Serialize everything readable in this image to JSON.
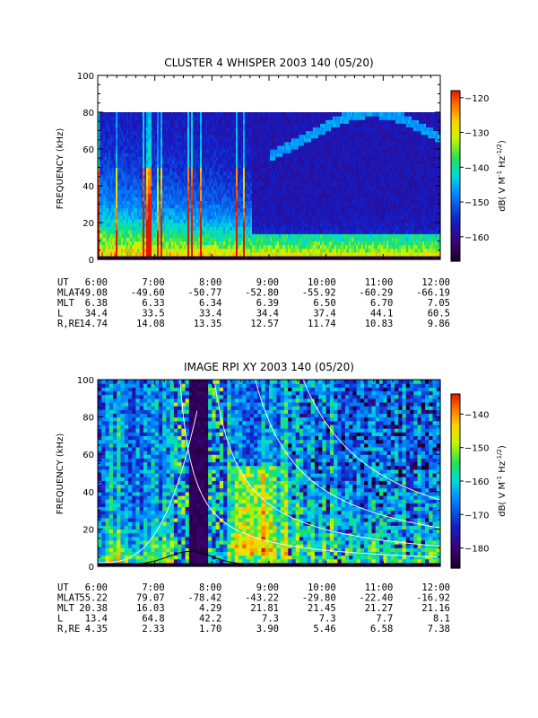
{
  "chart_data": [
    {
      "type": "heatmap",
      "title": "CLUSTER 4 WHISPER 2003 140 (05/20)",
      "ylabel": "FREQUENCY (kHz)",
      "ylim": [
        0,
        100
      ],
      "yticks": [
        "0",
        "20",
        "40",
        "60",
        "80",
        "100"
      ],
      "data_top_khz": 80,
      "colorbar": {
        "label": "dB( V M⁻¹ Hz⁻¹ᐟ²)",
        "label_parts": [
          "dB( V M",
          "-1",
          " Hz",
          "-1/2",
          ")"
        ],
        "range": [
          -167,
          -118
        ],
        "ticks": [
          -120,
          -130,
          -140,
          -150,
          -160
        ],
        "tick_labels": [
          "−120",
          "−130",
          "−140",
          "−150",
          "−160"
        ]
      },
      "ephemeris": {
        "row_labels": [
          "UT",
          "MLAT",
          "MLT",
          "L",
          "R,RE"
        ],
        "times": [
          "6:00",
          "7:00",
          "8:00",
          "9:00",
          "10:00",
          "11:00",
          "12:00"
        ],
        "mlat": [
          "-49.08",
          "-49.60",
          "-50.77",
          "-52.80",
          "-55.92",
          "-60.29",
          "-66.19"
        ],
        "mlt": [
          "6.38",
          "6.33",
          "6.34",
          "6.39",
          "6.50",
          "6.70",
          "7.05"
        ],
        "l": [
          "34.4",
          "33.5",
          "33.4",
          "34.4",
          "37.4",
          "44.1",
          "60.5"
        ],
        "r_re": [
          "14.74",
          "14.08",
          "13.35",
          "12.57",
          "11.74",
          "10.83",
          "9.86"
        ]
      }
    },
    {
      "type": "heatmap",
      "title": "IMAGE RPI XY 2003 140 (05/20)",
      "ylabel": "FREQUENCY (kHz)",
      "ylim": [
        0,
        100
      ],
      "yticks": [
        "0",
        "20",
        "40",
        "60",
        "80",
        "100"
      ],
      "colorbar": {
        "label": "dB( V M⁻¹ Hz⁻¹ᐟ²)",
        "label_parts": [
          "dB( V M",
          "-1",
          " Hz",
          "-1/2",
          ")"
        ],
        "range": [
          -186,
          -134
        ],
        "ticks": [
          -140,
          -150,
          -160,
          -170,
          -180
        ],
        "tick_labels": [
          "−140",
          "−150",
          "−160",
          "−170",
          "−180"
        ]
      },
      "ephemeris": {
        "row_labels": [
          "UT",
          "MLAT",
          "MLT",
          "L",
          "R,RE"
        ],
        "times": [
          "6:00",
          "7:00",
          "8:00",
          "9:00",
          "10:00",
          "11:00",
          "12:00"
        ],
        "mlat": [
          "55.22",
          "79.07",
          "-78.42",
          "-43.22",
          "-29.80",
          "-22.40",
          "-16.92"
        ],
        "mlt": [
          "20.38",
          "16.03",
          "4.29",
          "21.81",
          "21.45",
          "21.27",
          "21.16"
        ],
        "l": [
          "13.4",
          "64.8",
          "42.2",
          "7.3",
          "7.3",
          "7.7",
          "8.1"
        ],
        "r_re": [
          "4.35",
          "2.33",
          "1.70",
          "3.90",
          "5.46",
          "6.58",
          "7.38"
        ]
      }
    }
  ]
}
